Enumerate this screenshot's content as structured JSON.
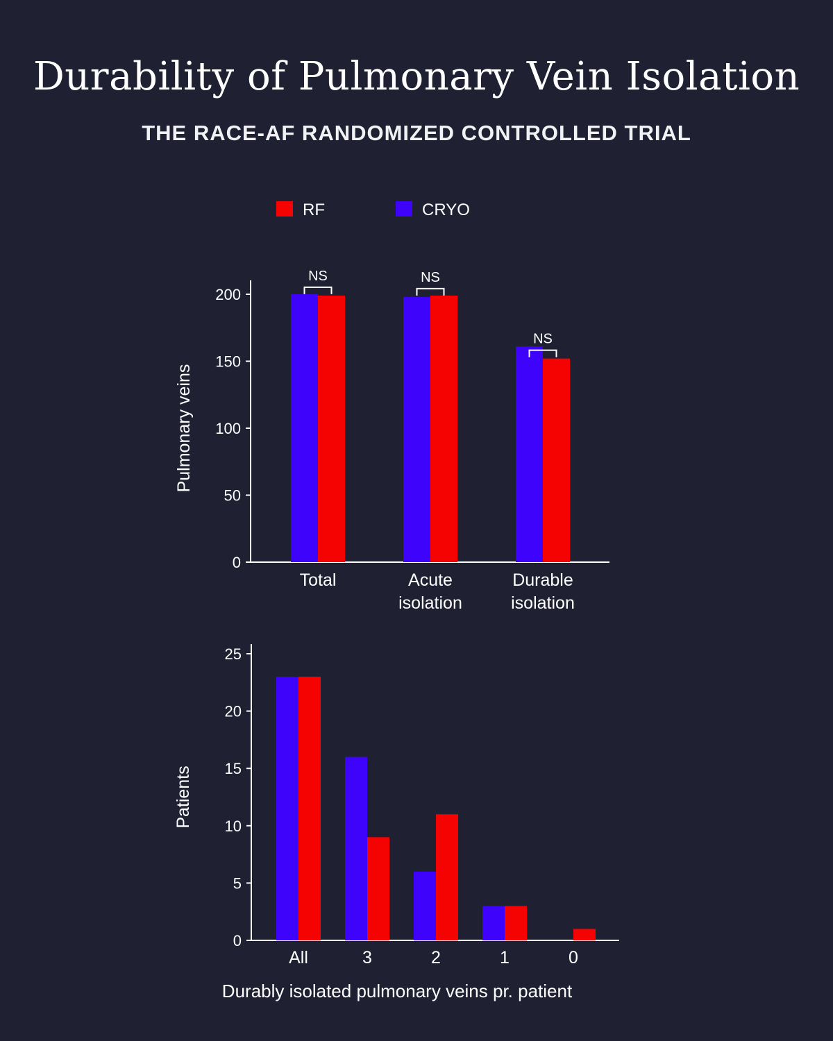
{
  "header": {
    "title": "Durability of Pulmonary Vein Isolation",
    "subtitle": "THE RACE-AF RANDOMIZED CONTROLLED TRIAL"
  },
  "legend": {
    "items": [
      {
        "label": "RF",
        "color": "#f50303"
      },
      {
        "label": "CRYO",
        "color": "#3e04fb"
      }
    ]
  },
  "chart_data": [
    {
      "type": "bar",
      "categories": [
        [
          "Total"
        ],
        [
          "Acute",
          "isolation"
        ],
        [
          "Durable",
          "isolation"
        ]
      ],
      "series": [
        {
          "name": "CRYO",
          "color": "#3e04fb",
          "values": [
            200,
            198,
            161
          ]
        },
        {
          "name": "RF",
          "color": "#f50303",
          "values": [
            199,
            199,
            152
          ]
        }
      ],
      "ylabel": "Pulmonary veins",
      "xlabel": "",
      "ylim": [
        0,
        200
      ],
      "yticks": [
        0,
        50,
        100,
        150,
        200
      ],
      "annotations": [
        "NS",
        "NS",
        "NS"
      ],
      "grid": false
    },
    {
      "type": "bar",
      "categories": [
        [
          "All"
        ],
        [
          "3"
        ],
        [
          "2"
        ],
        [
          "1"
        ],
        [
          "0"
        ]
      ],
      "series": [
        {
          "name": "CRYO",
          "color": "#3e04fb",
          "values": [
            23,
            16,
            6,
            3,
            0
          ]
        },
        {
          "name": "RF",
          "color": "#f50303",
          "values": [
            23,
            9,
            11,
            3,
            1
          ]
        }
      ],
      "ylabel": "Patients",
      "xlabel": "Durably isolated pulmonary veins pr. patient",
      "ylim": [
        0,
        25
      ],
      "yticks": [
        0,
        5,
        10,
        15,
        20,
        25
      ],
      "annotations": [],
      "grid": false
    }
  ]
}
